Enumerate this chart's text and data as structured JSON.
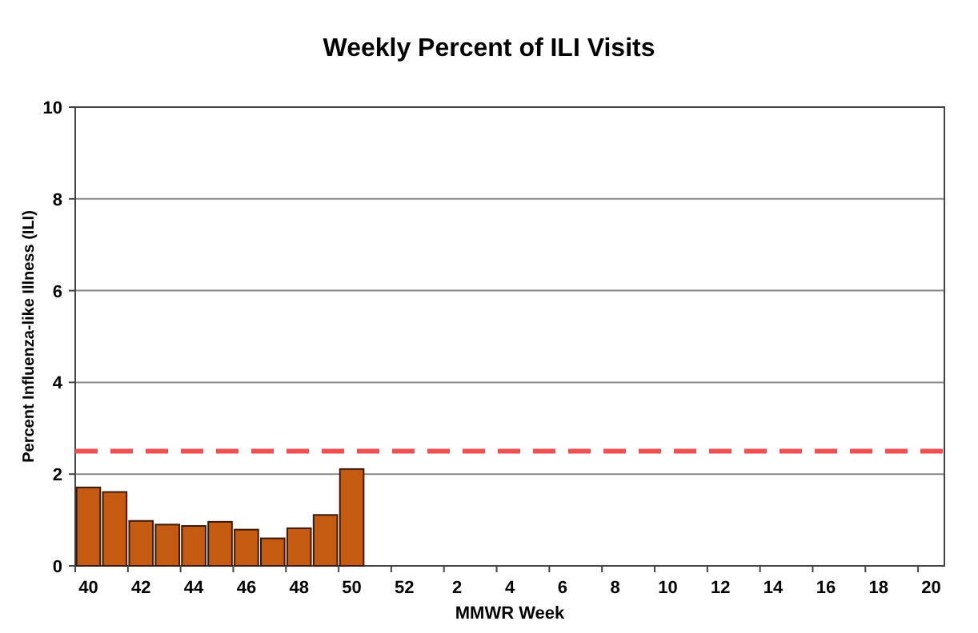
{
  "chart_data": {
    "type": "bar",
    "title": "Weekly Percent of ILI Visits",
    "xlabel": "MMWR Week",
    "ylabel": "Percent Influenza-like Illness (ILI)",
    "categories": [
      "40",
      null,
      "42",
      null,
      "44",
      null,
      "46",
      null,
      "48",
      null,
      "50",
      null,
      "52",
      null,
      "2",
      null,
      "4",
      null,
      "6",
      null,
      "8",
      null,
      "10",
      null,
      "12",
      null,
      "14",
      null,
      "16",
      null,
      "18",
      null,
      "20"
    ],
    "values": [
      1.71,
      1.61,
      0.98,
      0.9,
      0.87,
      0.96,
      0.79,
      0.6,
      0.82,
      1.11,
      2.11,
      null,
      null,
      null,
      null,
      null,
      null,
      null,
      null,
      null,
      null,
      null,
      null,
      null,
      null,
      null,
      null,
      null,
      null,
      null,
      null,
      null,
      null
    ],
    "color": "#c55a11",
    "ylim": [
      0,
      10
    ],
    "yticks": [
      0,
      2,
      4,
      6,
      8,
      10
    ],
    "grid": "y",
    "ref_lines": [
      {
        "axis": "y",
        "value": 2.5,
        "color": "#f05050",
        "line_style": "dashed"
      }
    ]
  }
}
